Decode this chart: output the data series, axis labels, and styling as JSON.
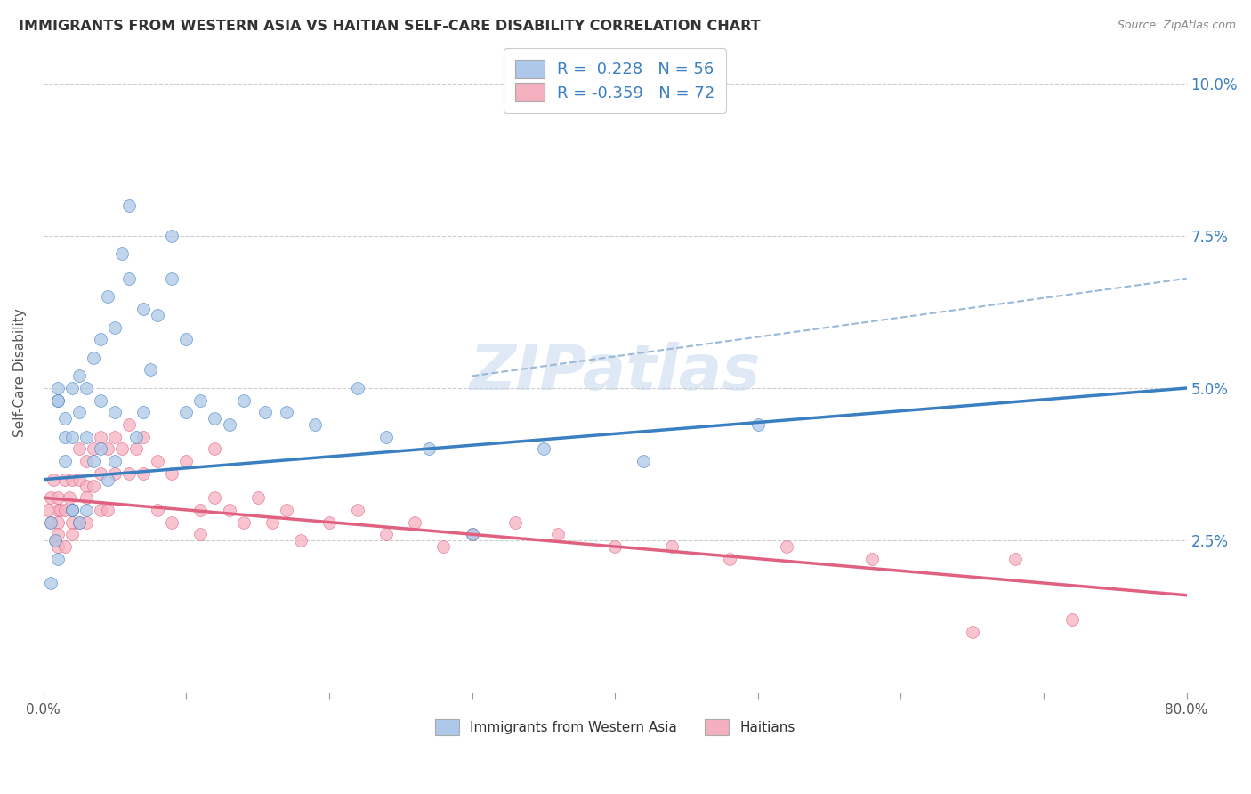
{
  "title": "IMMIGRANTS FROM WESTERN ASIA VS HAITIAN SELF-CARE DISABILITY CORRELATION CHART",
  "source": "Source: ZipAtlas.com",
  "ylabel": "Self-Care Disability",
  "yticks": [
    0.025,
    0.05,
    0.075,
    0.1
  ],
  "ytick_labels": [
    "2.5%",
    "5.0%",
    "7.5%",
    "10.0%"
  ],
  "xlim": [
    0.0,
    0.8
  ],
  "ylim": [
    0.0,
    0.105
  ],
  "blue_R": 0.228,
  "blue_N": 56,
  "pink_R": -0.359,
  "pink_N": 72,
  "blue_color": "#adc8e8",
  "pink_color": "#f5b0c0",
  "blue_line_color": "#3a7fc1",
  "pink_line_color": "#e06080",
  "dash_line_color": "#9ab8d8",
  "watermark": "ZIPatlas",
  "legend_label_blue": "Immigrants from Western Asia",
  "legend_label_pink": "Haitians",
  "blue_scatter_x": [
    0.005,
    0.01,
    0.01,
    0.01,
    0.015,
    0.015,
    0.02,
    0.02,
    0.02,
    0.025,
    0.025,
    0.03,
    0.03,
    0.03,
    0.035,
    0.035,
    0.04,
    0.04,
    0.04,
    0.045,
    0.045,
    0.05,
    0.05,
    0.05,
    0.055,
    0.06,
    0.06,
    0.065,
    0.07,
    0.07,
    0.075,
    0.08,
    0.09,
    0.09,
    0.1,
    0.1,
    0.11,
    0.12,
    0.13,
    0.14,
    0.155,
    0.17,
    0.19,
    0.22,
    0.24,
    0.27,
    0.3,
    0.35,
    0.42,
    0.5,
    0.005,
    0.008,
    0.01,
    0.015,
    0.02,
    0.025
  ],
  "blue_scatter_y": [
    0.028,
    0.048,
    0.05,
    0.022,
    0.045,
    0.042,
    0.05,
    0.042,
    0.03,
    0.052,
    0.028,
    0.042,
    0.05,
    0.03,
    0.055,
    0.038,
    0.048,
    0.04,
    0.058,
    0.065,
    0.035,
    0.06,
    0.046,
    0.038,
    0.072,
    0.068,
    0.08,
    0.042,
    0.063,
    0.046,
    0.053,
    0.062,
    0.075,
    0.068,
    0.046,
    0.058,
    0.048,
    0.045,
    0.044,
    0.048,
    0.046,
    0.046,
    0.044,
    0.05,
    0.042,
    0.04,
    0.026,
    0.04,
    0.038,
    0.044,
    0.018,
    0.025,
    0.048,
    0.038,
    0.03,
    0.046
  ],
  "pink_scatter_x": [
    0.003,
    0.005,
    0.005,
    0.007,
    0.008,
    0.01,
    0.01,
    0.01,
    0.01,
    0.01,
    0.012,
    0.015,
    0.015,
    0.015,
    0.018,
    0.02,
    0.02,
    0.02,
    0.02,
    0.025,
    0.025,
    0.025,
    0.03,
    0.03,
    0.03,
    0.03,
    0.035,
    0.035,
    0.04,
    0.04,
    0.04,
    0.045,
    0.045,
    0.05,
    0.05,
    0.055,
    0.06,
    0.06,
    0.065,
    0.07,
    0.07,
    0.08,
    0.08,
    0.09,
    0.09,
    0.1,
    0.11,
    0.11,
    0.12,
    0.12,
    0.13,
    0.14,
    0.15,
    0.16,
    0.17,
    0.18,
    0.2,
    0.22,
    0.24,
    0.26,
    0.28,
    0.3,
    0.33,
    0.36,
    0.4,
    0.44,
    0.48,
    0.52,
    0.58,
    0.65,
    0.68,
    0.72
  ],
  "pink_scatter_y": [
    0.03,
    0.032,
    0.028,
    0.035,
    0.025,
    0.032,
    0.028,
    0.026,
    0.024,
    0.03,
    0.03,
    0.035,
    0.03,
    0.024,
    0.032,
    0.035,
    0.03,
    0.028,
    0.026,
    0.04,
    0.035,
    0.028,
    0.038,
    0.034,
    0.032,
    0.028,
    0.04,
    0.034,
    0.042,
    0.036,
    0.03,
    0.04,
    0.03,
    0.042,
    0.036,
    0.04,
    0.044,
    0.036,
    0.04,
    0.042,
    0.036,
    0.038,
    0.03,
    0.036,
    0.028,
    0.038,
    0.03,
    0.026,
    0.04,
    0.032,
    0.03,
    0.028,
    0.032,
    0.028,
    0.03,
    0.025,
    0.028,
    0.03,
    0.026,
    0.028,
    0.024,
    0.026,
    0.028,
    0.026,
    0.024,
    0.024,
    0.022,
    0.024,
    0.022,
    0.01,
    0.022,
    0.012
  ],
  "blue_line_x": [
    0.0,
    0.8
  ],
  "blue_line_y_start": 0.035,
  "blue_line_y_end": 0.05,
  "pink_line_x": [
    0.0,
    0.8
  ],
  "pink_line_y_start": 0.032,
  "pink_line_y_end": 0.016,
  "dash_line_x": [
    0.3,
    0.8
  ],
  "dash_line_y_start": 0.052,
  "dash_line_y_end": 0.068
}
